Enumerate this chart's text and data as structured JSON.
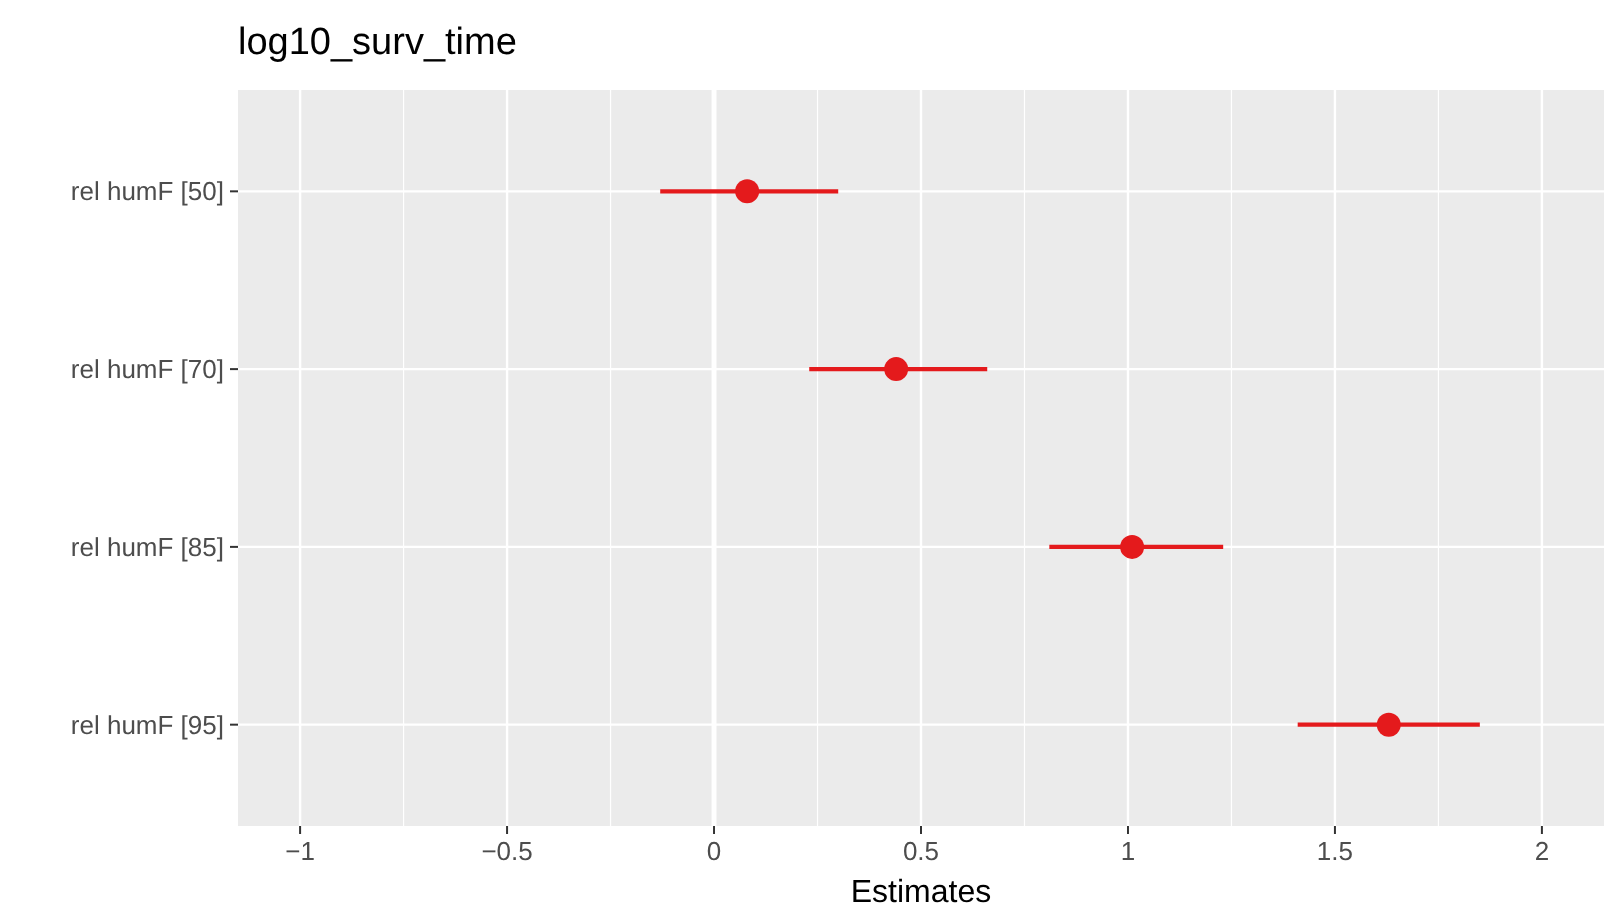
{
  "chart_data": {
    "type": "scatter",
    "title": "log10_surv_time",
    "xlabel": "Estimates",
    "orientation": "horizontal",
    "categories": [
      "rel humF [50]",
      "rel humF [70]",
      "rel humF [85]",
      "rel humF [95]"
    ],
    "values": [
      0.08,
      0.44,
      1.01,
      1.63
    ],
    "errors": [
      [
        -0.13,
        0.3
      ],
      [
        0.23,
        0.66
      ],
      [
        0.81,
        1.23
      ],
      [
        1.41,
        1.85
      ]
    ],
    "color": "#e41a1c",
    "marker": "circle",
    "xlim": [
      -1.15,
      2.15
    ],
    "xticks": [
      {
        "value": -1,
        "label": "−1"
      },
      {
        "value": -0.5,
        "label": "−0.5"
      },
      0,
      0.5,
      1,
      1.5,
      2
    ],
    "ref_lines": [
      {
        "axis": "x",
        "value": 0,
        "color": "#ffffff"
      }
    ],
    "grid": true
  }
}
